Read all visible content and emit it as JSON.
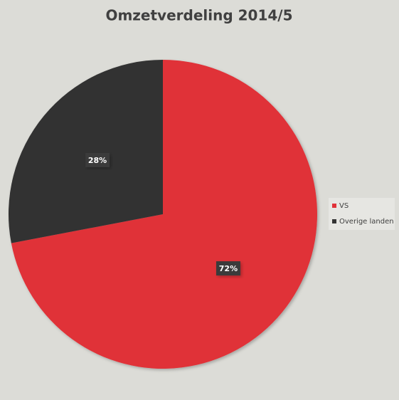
{
  "chart_data": {
    "type": "pie",
    "title": "Omzetverdeling 2014/5",
    "categories": [
      "VS",
      "Overige landen"
    ],
    "values": [
      72,
      28
    ],
    "value_labels": [
      "72%",
      "28%"
    ],
    "colors": [
      "#e03139",
      "#333333"
    ],
    "legend": "right"
  }
}
